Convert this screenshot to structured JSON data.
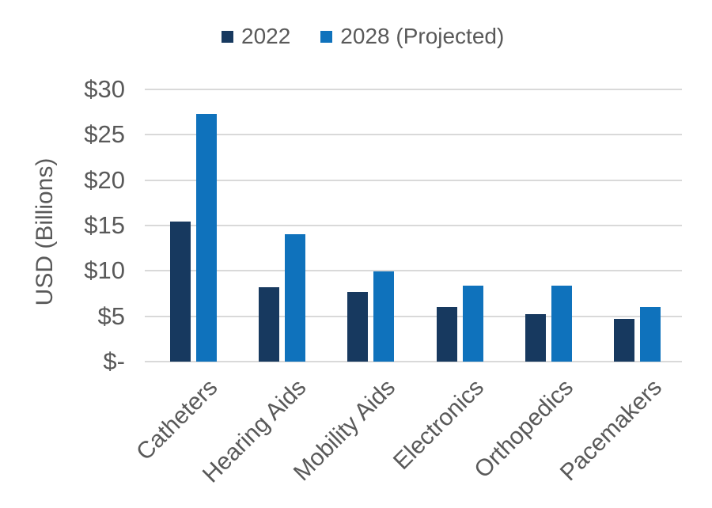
{
  "chart_data": {
    "type": "bar",
    "title": "",
    "xlabel": "",
    "ylabel": "USD (Billions)",
    "categories": [
      "Catheters",
      "Hearing Aids",
      "Mobility Aids",
      "Electronics",
      "Orthopedics",
      "Pacemakers"
    ],
    "series": [
      {
        "name": "2022",
        "color": "#17395F",
        "values": [
          15.4,
          8.2,
          7.7,
          6.0,
          5.2,
          4.7
        ]
      },
      {
        "name": "2028 (Projected)",
        "color": "#0F72BC",
        "values": [
          27.3,
          14.0,
          9.9,
          8.4,
          8.4,
          6.0
        ]
      }
    ],
    "ylim": [
      0,
      30
    ],
    "ytick_step": 5,
    "ytick_labels": [
      "$-",
      "$5",
      "$10",
      "$15",
      "$20",
      "$25",
      "$30"
    ],
    "grid": "horizontal",
    "legend_position": "top-center",
    "colors": {
      "gridline": "#D9D9D9",
      "text": "#595959",
      "background": "#FFFFFF"
    }
  }
}
